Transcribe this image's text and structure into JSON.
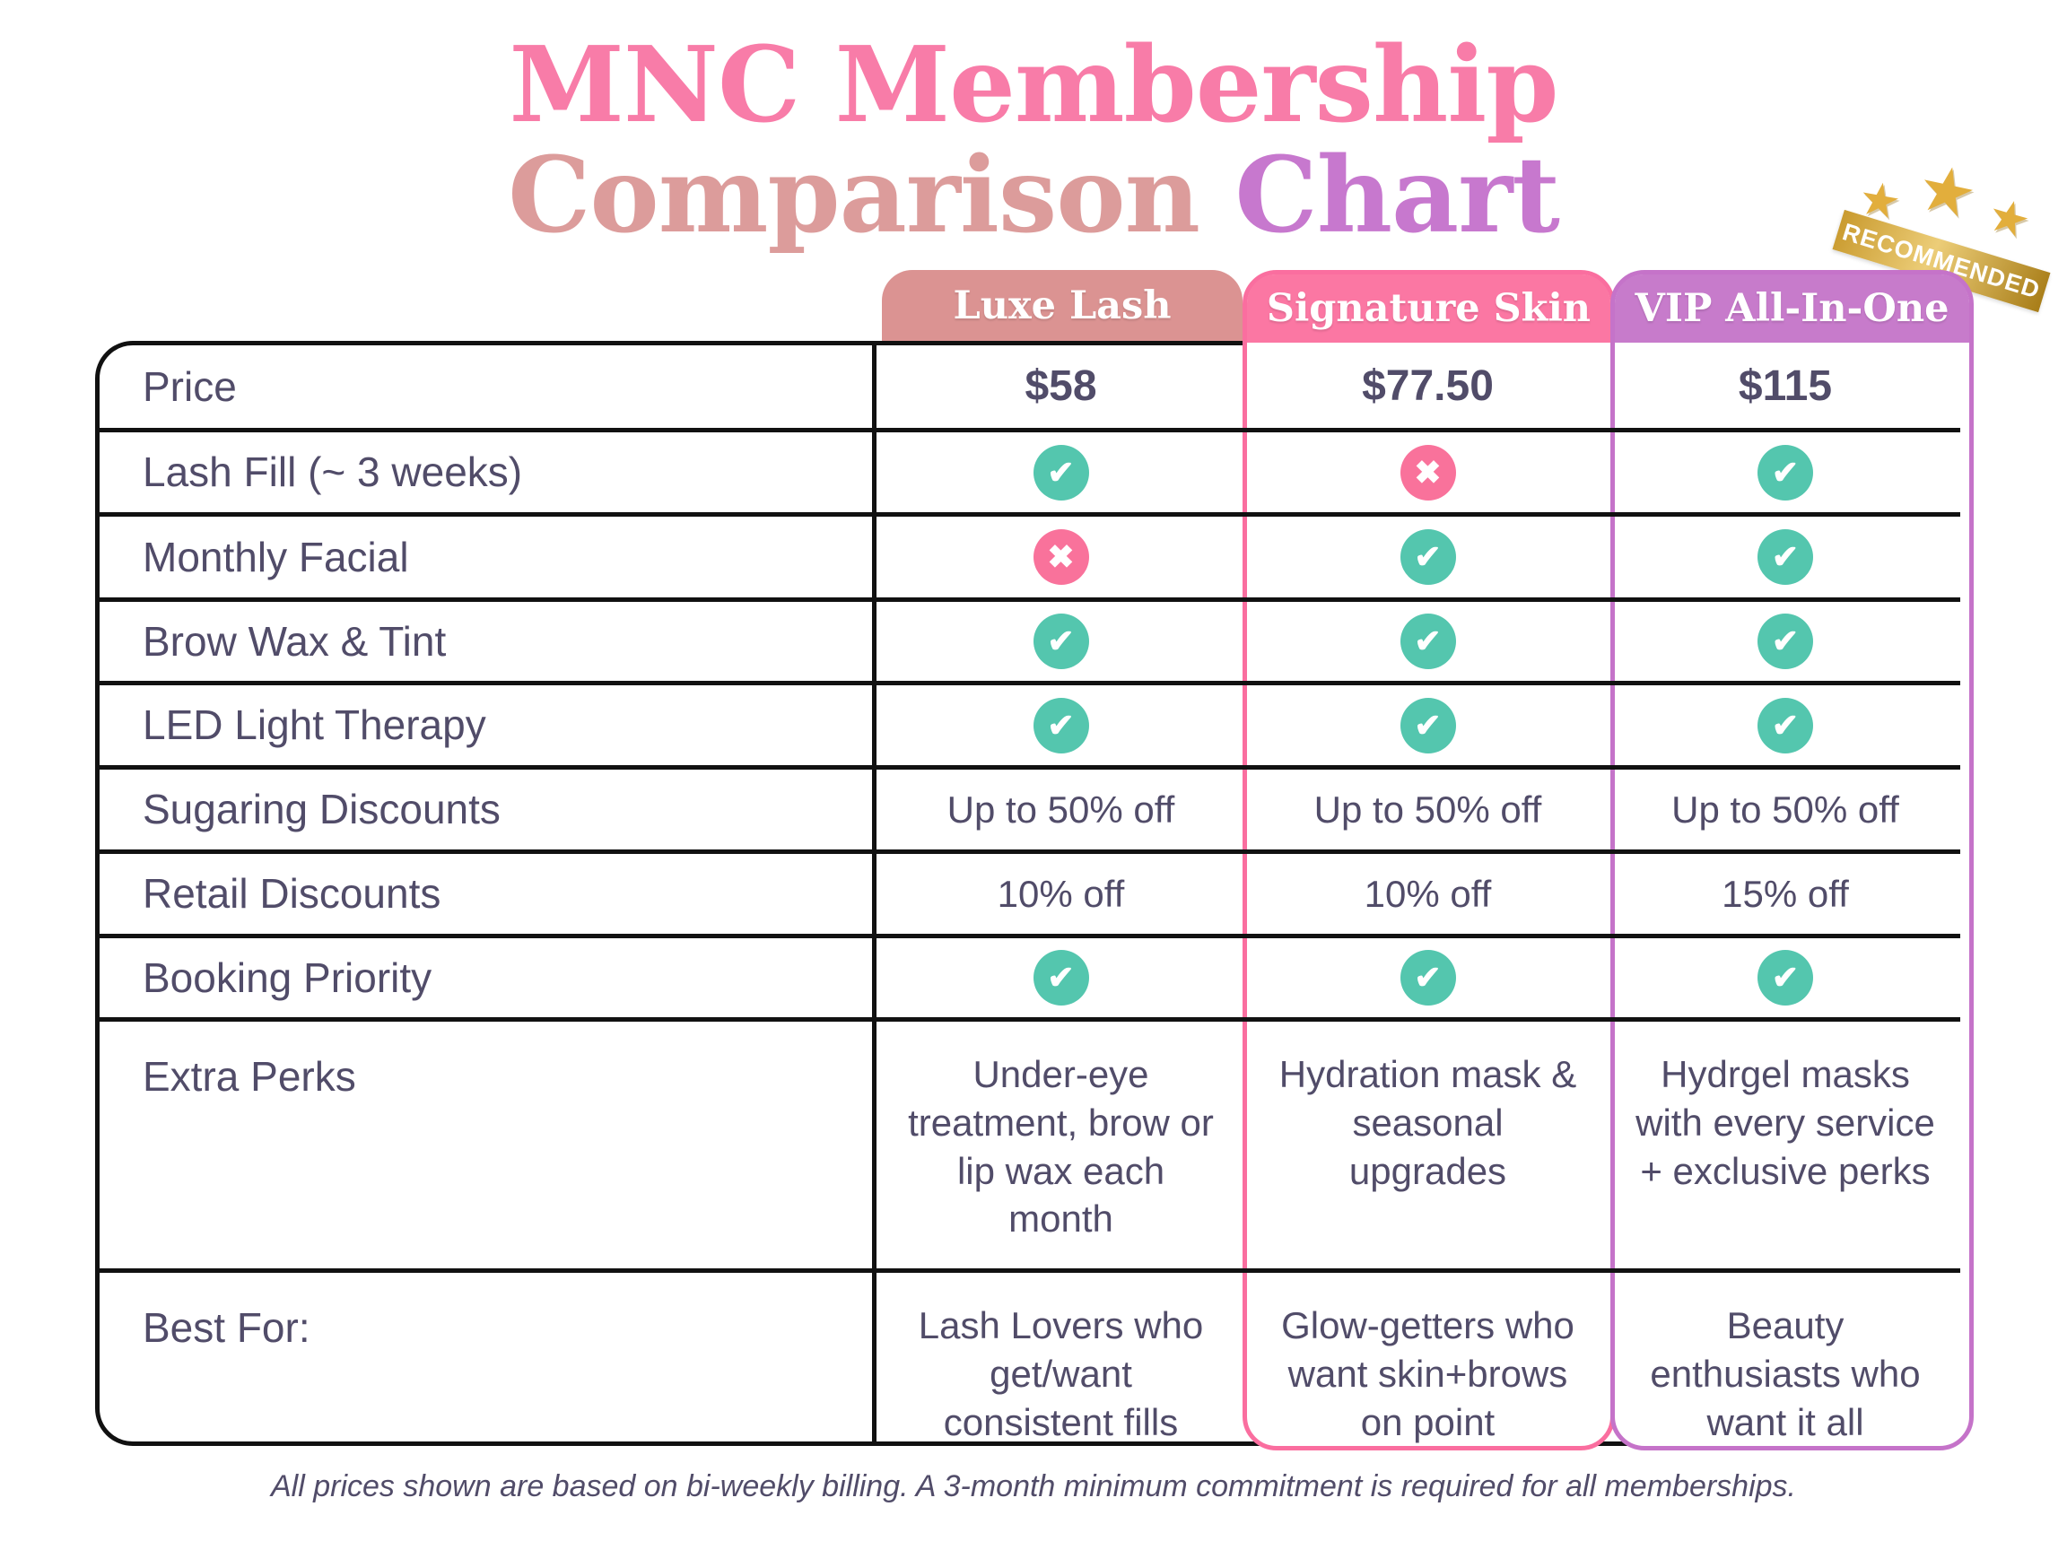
{
  "title": {
    "line1": "MNC Membership",
    "line2_word1": "Comparison",
    "line2_word2": "Chart"
  },
  "badge": {
    "label": "RECOMMENDED",
    "star_icon": "★",
    "star_count": 3
  },
  "columns": [
    {
      "name": "Luxe Lash"
    },
    {
      "name": "Signature Skin"
    },
    {
      "name": "VIP All-In-One",
      "badge": "RECOMMENDED"
    }
  ],
  "rows": [
    {
      "label": "Price",
      "type": "price",
      "values": [
        "$58",
        "$77.50",
        "$115"
      ]
    },
    {
      "label": "Lash Fill (~ 3 weeks)",
      "type": "icon",
      "values": [
        "check",
        "x",
        "check"
      ]
    },
    {
      "label": "Monthly Facial",
      "type": "icon",
      "values": [
        "x",
        "check",
        "check"
      ]
    },
    {
      "label": "Brow Wax & Tint",
      "type": "icon",
      "values": [
        "check",
        "check",
        "check"
      ]
    },
    {
      "label": "LED Light Therapy",
      "type": "icon",
      "values": [
        "check",
        "check",
        "check"
      ]
    },
    {
      "label": "Sugaring Discounts",
      "type": "text",
      "values": [
        "Up to 50% off",
        "Up to 50% off",
        "Up to 50% off"
      ]
    },
    {
      "label": "Retail Discounts",
      "type": "text",
      "values": [
        "10% off",
        "10% off",
        "15% off"
      ]
    },
    {
      "label": "Booking Priority",
      "type": "icon",
      "values": [
        "check",
        "check",
        "check"
      ]
    },
    {
      "label": "Extra Perks",
      "type": "longtext",
      "values": [
        "Under-eye treatment, brow or lip wax each month",
        "Hydration mask & seasonal upgrades",
        "Hydrgel masks with every service + exclusive perks"
      ]
    },
    {
      "label": "Best For:",
      "type": "longtext",
      "values": [
        "Lash Lovers who get/want consistent fills",
        "Glow-getters who want skin+brows on point",
        "Beauty enthusiasts who want it all"
      ]
    }
  ],
  "icons": {
    "check": "✔",
    "x": "✖"
  },
  "footer": "All prices shown are based on bi-weekly billing. A 3-month minimum commitment is required for all memberships.",
  "colors": {
    "titlePink": "#F87CA8",
    "titleDusty": "#DC9C9B",
    "titlePurple": "#C778CE",
    "luxeTab": "#DB9392",
    "pinkTab": "#FB77A3",
    "pink": "#FA6E9F",
    "purpleTab": "#C77BCB",
    "purpleBorder": "#C573C9",
    "teal": "#54C6AE",
    "xpink": "#F9729B",
    "gold": "#E2AE3C",
    "text": "#514C69",
    "line": "#111111"
  }
}
